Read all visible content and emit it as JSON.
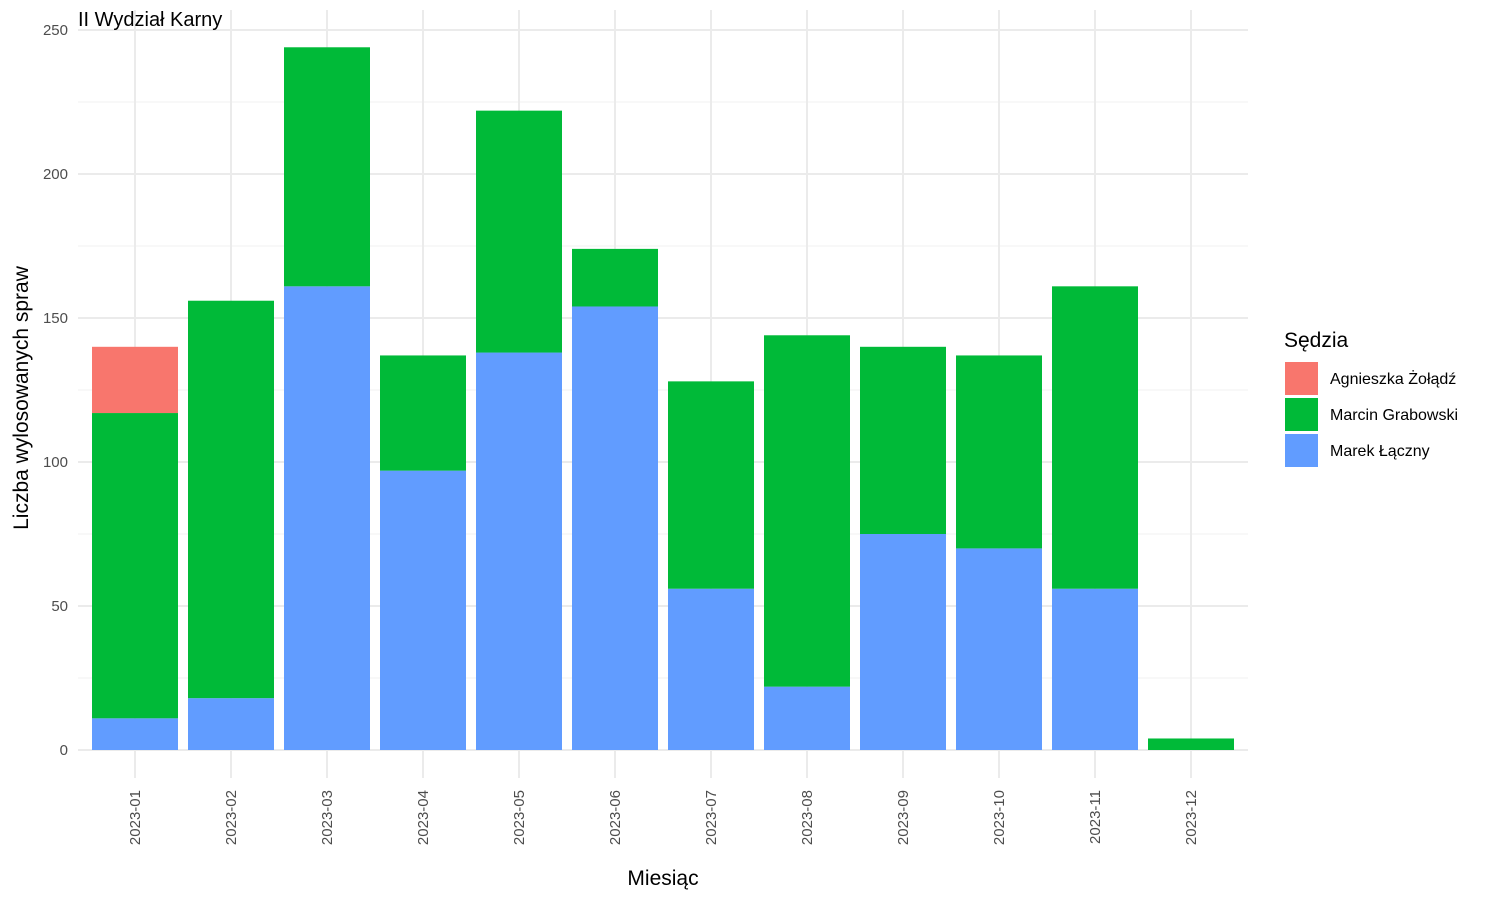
{
  "chart_data": {
    "type": "bar",
    "stacked": true,
    "title": "II Wydział Karny",
    "xlabel": "Miesiąc",
    "ylabel": "Liczba wylosowanych spraw",
    "ylim": [
      0,
      250
    ],
    "yticks": [
      0,
      50,
      100,
      150,
      200,
      250
    ],
    "grid": true,
    "legend": {
      "title": "Sędzia",
      "position": "right"
    },
    "categories": [
      "2023-01",
      "2023-02",
      "2023-03",
      "2023-04",
      "2023-05",
      "2023-06",
      "2023-07",
      "2023-08",
      "2023-09",
      "2023-10",
      "2023-11",
      "2023-12"
    ],
    "series": [
      {
        "name": "Agnieszka Żołądź",
        "color": "#F8766D",
        "values": [
          23,
          0,
          0,
          0,
          0,
          0,
          0,
          0,
          0,
          0,
          0,
          0
        ]
      },
      {
        "name": "Marcin Grabowski",
        "color": "#00BA38",
        "values": [
          106,
          138,
          83,
          40,
          84,
          20,
          72,
          122,
          65,
          67,
          105,
          4
        ]
      },
      {
        "name": "Marek Łączny",
        "color": "#619CFF",
        "values": [
          11,
          18,
          161,
          97,
          138,
          154,
          56,
          22,
          75,
          70,
          56,
          0
        ]
      }
    ],
    "stack_order_bottom_to_top": [
      "Marek Łączny",
      "Marcin Grabowski",
      "Agnieszka Żołądź"
    ]
  }
}
